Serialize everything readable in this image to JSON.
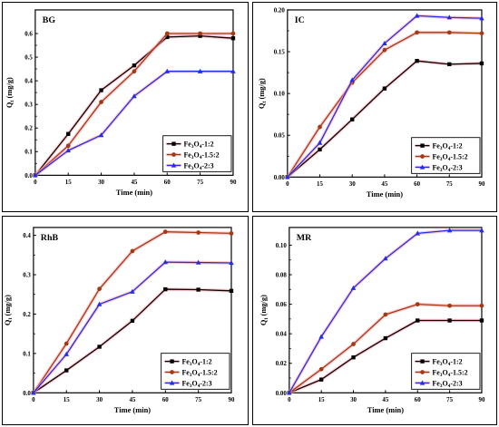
{
  "chart_data": [
    {
      "type": "line",
      "title": "BG",
      "xlabel": "Time (min)",
      "ylabel": "Q",
      "ylabel_sub": "t",
      "ylabel_unit": " (mg/g)",
      "x": [
        0,
        15,
        30,
        45,
        60,
        75,
        90
      ],
      "xlim": [
        0,
        90
      ],
      "ylim": [
        0,
        0.7
      ],
      "yticks": [
        0.0,
        0.1,
        0.2,
        0.3,
        0.4,
        0.5,
        0.6
      ],
      "ytick_labels": [
        "0.0",
        "0.1",
        "0.2",
        "0.3",
        "0.4",
        "0.5",
        "0.6"
      ],
      "xticks": [
        0,
        15,
        30,
        45,
        60,
        75,
        90
      ],
      "legend_position": "lower-right",
      "series": [
        {
          "name": "Fe3O4-1:2",
          "values": [
            0,
            0.175,
            0.36,
            0.465,
            0.585,
            0.59,
            0.58
          ]
        },
        {
          "name": "Fe3O4-1.5:2",
          "values": [
            0,
            0.125,
            0.31,
            0.44,
            0.6,
            0.6,
            0.6
          ]
        },
        {
          "name": "Fe3O4-2:3",
          "values": [
            0,
            0.105,
            0.17,
            0.335,
            0.44,
            0.44,
            0.44
          ]
        }
      ]
    },
    {
      "type": "line",
      "title": "IC",
      "xlabel": "Time (min)",
      "ylabel": "Q",
      "ylabel_sub": "t",
      "ylabel_unit": " (mg/g)",
      "x": [
        0,
        15,
        30,
        45,
        60,
        75,
        90
      ],
      "xlim": [
        0,
        90
      ],
      "ylim": [
        0,
        0.2
      ],
      "yticks": [
        0.0,
        0.05,
        0.1,
        0.15,
        0.2
      ],
      "ytick_labels": [
        "0.00",
        "0.05",
        "0.10",
        "0.15",
        "0.20"
      ],
      "xticks": [
        0,
        15,
        30,
        45,
        60,
        75,
        90
      ],
      "legend_position": "lower-right",
      "series": [
        {
          "name": "Fe3O4-1:2",
          "values": [
            0,
            0.033,
            0.069,
            0.106,
            0.139,
            0.135,
            0.136
          ]
        },
        {
          "name": "Fe3O4-1.5:2",
          "values": [
            0,
            0.06,
            0.113,
            0.152,
            0.173,
            0.173,
            0.172
          ]
        },
        {
          "name": "Fe3O4-2:3",
          "values": [
            0,
            0.041,
            0.116,
            0.16,
            0.193,
            0.191,
            0.19
          ]
        }
      ]
    },
    {
      "type": "line",
      "title": "RhB",
      "xlabel": "Time (min)",
      "ylabel": "Q",
      "ylabel_sub": "t",
      "ylabel_unit": " (mg/g)",
      "x": [
        0,
        15,
        30,
        45,
        60,
        75,
        90
      ],
      "xlim": [
        0,
        90
      ],
      "ylim": [
        0,
        0.42
      ],
      "yticks": [
        0.0,
        0.1,
        0.2,
        0.3,
        0.4
      ],
      "ytick_labels": [
        "0.0",
        "0.1",
        "0.2",
        "0.3",
        "0.4"
      ],
      "xticks": [
        0,
        15,
        30,
        45,
        60,
        75,
        90
      ],
      "legend_position": "lower-right",
      "series": [
        {
          "name": "Fe3O4-1:2",
          "values": [
            0,
            0.057,
            0.117,
            0.183,
            0.263,
            0.262,
            0.259
          ]
        },
        {
          "name": "Fe3O4-1.5:2",
          "values": [
            0,
            0.125,
            0.264,
            0.36,
            0.409,
            0.407,
            0.405
          ]
        },
        {
          "name": "Fe3O4-2:3",
          "values": [
            0,
            0.098,
            0.225,
            0.257,
            0.332,
            0.331,
            0.33
          ]
        }
      ]
    },
    {
      "type": "line",
      "title": "MR",
      "xlabel": "Time (min)",
      "ylabel": "Q",
      "ylabel_sub": "t",
      "ylabel_unit": " (mg/g)",
      "x": [
        0,
        15,
        30,
        45,
        60,
        75,
        90
      ],
      "xlim": [
        0,
        90
      ],
      "ylim": [
        0,
        0.112
      ],
      "yticks": [
        0.0,
        0.02,
        0.04,
        0.06,
        0.08,
        0.1
      ],
      "ytick_labels": [
        "0.00",
        "0.02",
        "0.04",
        "0.06",
        "0.08",
        "0.10"
      ],
      "xticks": [
        0,
        15,
        30,
        45,
        60,
        75,
        90
      ],
      "legend_position": "lower-right",
      "series": [
        {
          "name": "Fe3O4-1:2",
          "values": [
            0,
            0.009,
            0.024,
            0.037,
            0.049,
            0.049,
            0.049
          ]
        },
        {
          "name": "Fe3O4-1.5:2",
          "values": [
            0,
            0.016,
            0.033,
            0.053,
            0.06,
            0.059,
            0.059
          ]
        },
        {
          "name": "Fe3O4-2:3",
          "values": [
            0,
            0.038,
            0.071,
            0.091,
            0.108,
            0.11,
            0.11
          ]
        }
      ]
    }
  ],
  "legend": [
    {
      "prefix": "Fe",
      "sub1": "3",
      "mid": "O",
      "sub2": "4",
      "suffix": "-1:2"
    },
    {
      "prefix": "Fe",
      "sub1": "3",
      "mid": "O",
      "sub2": "4",
      "suffix": "-1.5:2"
    },
    {
      "prefix": "Fe",
      "sub1": "3",
      "mid": "O",
      "sub2": "4",
      "suffix": "-2:3"
    }
  ],
  "styles": {
    "series_colors": [
      "#000000",
      "#a33a12",
      "#1f2fe6"
    ],
    "series_markers": [
      "square",
      "circle",
      "triangle"
    ],
    "glow_color": "#ff9aa8"
  }
}
